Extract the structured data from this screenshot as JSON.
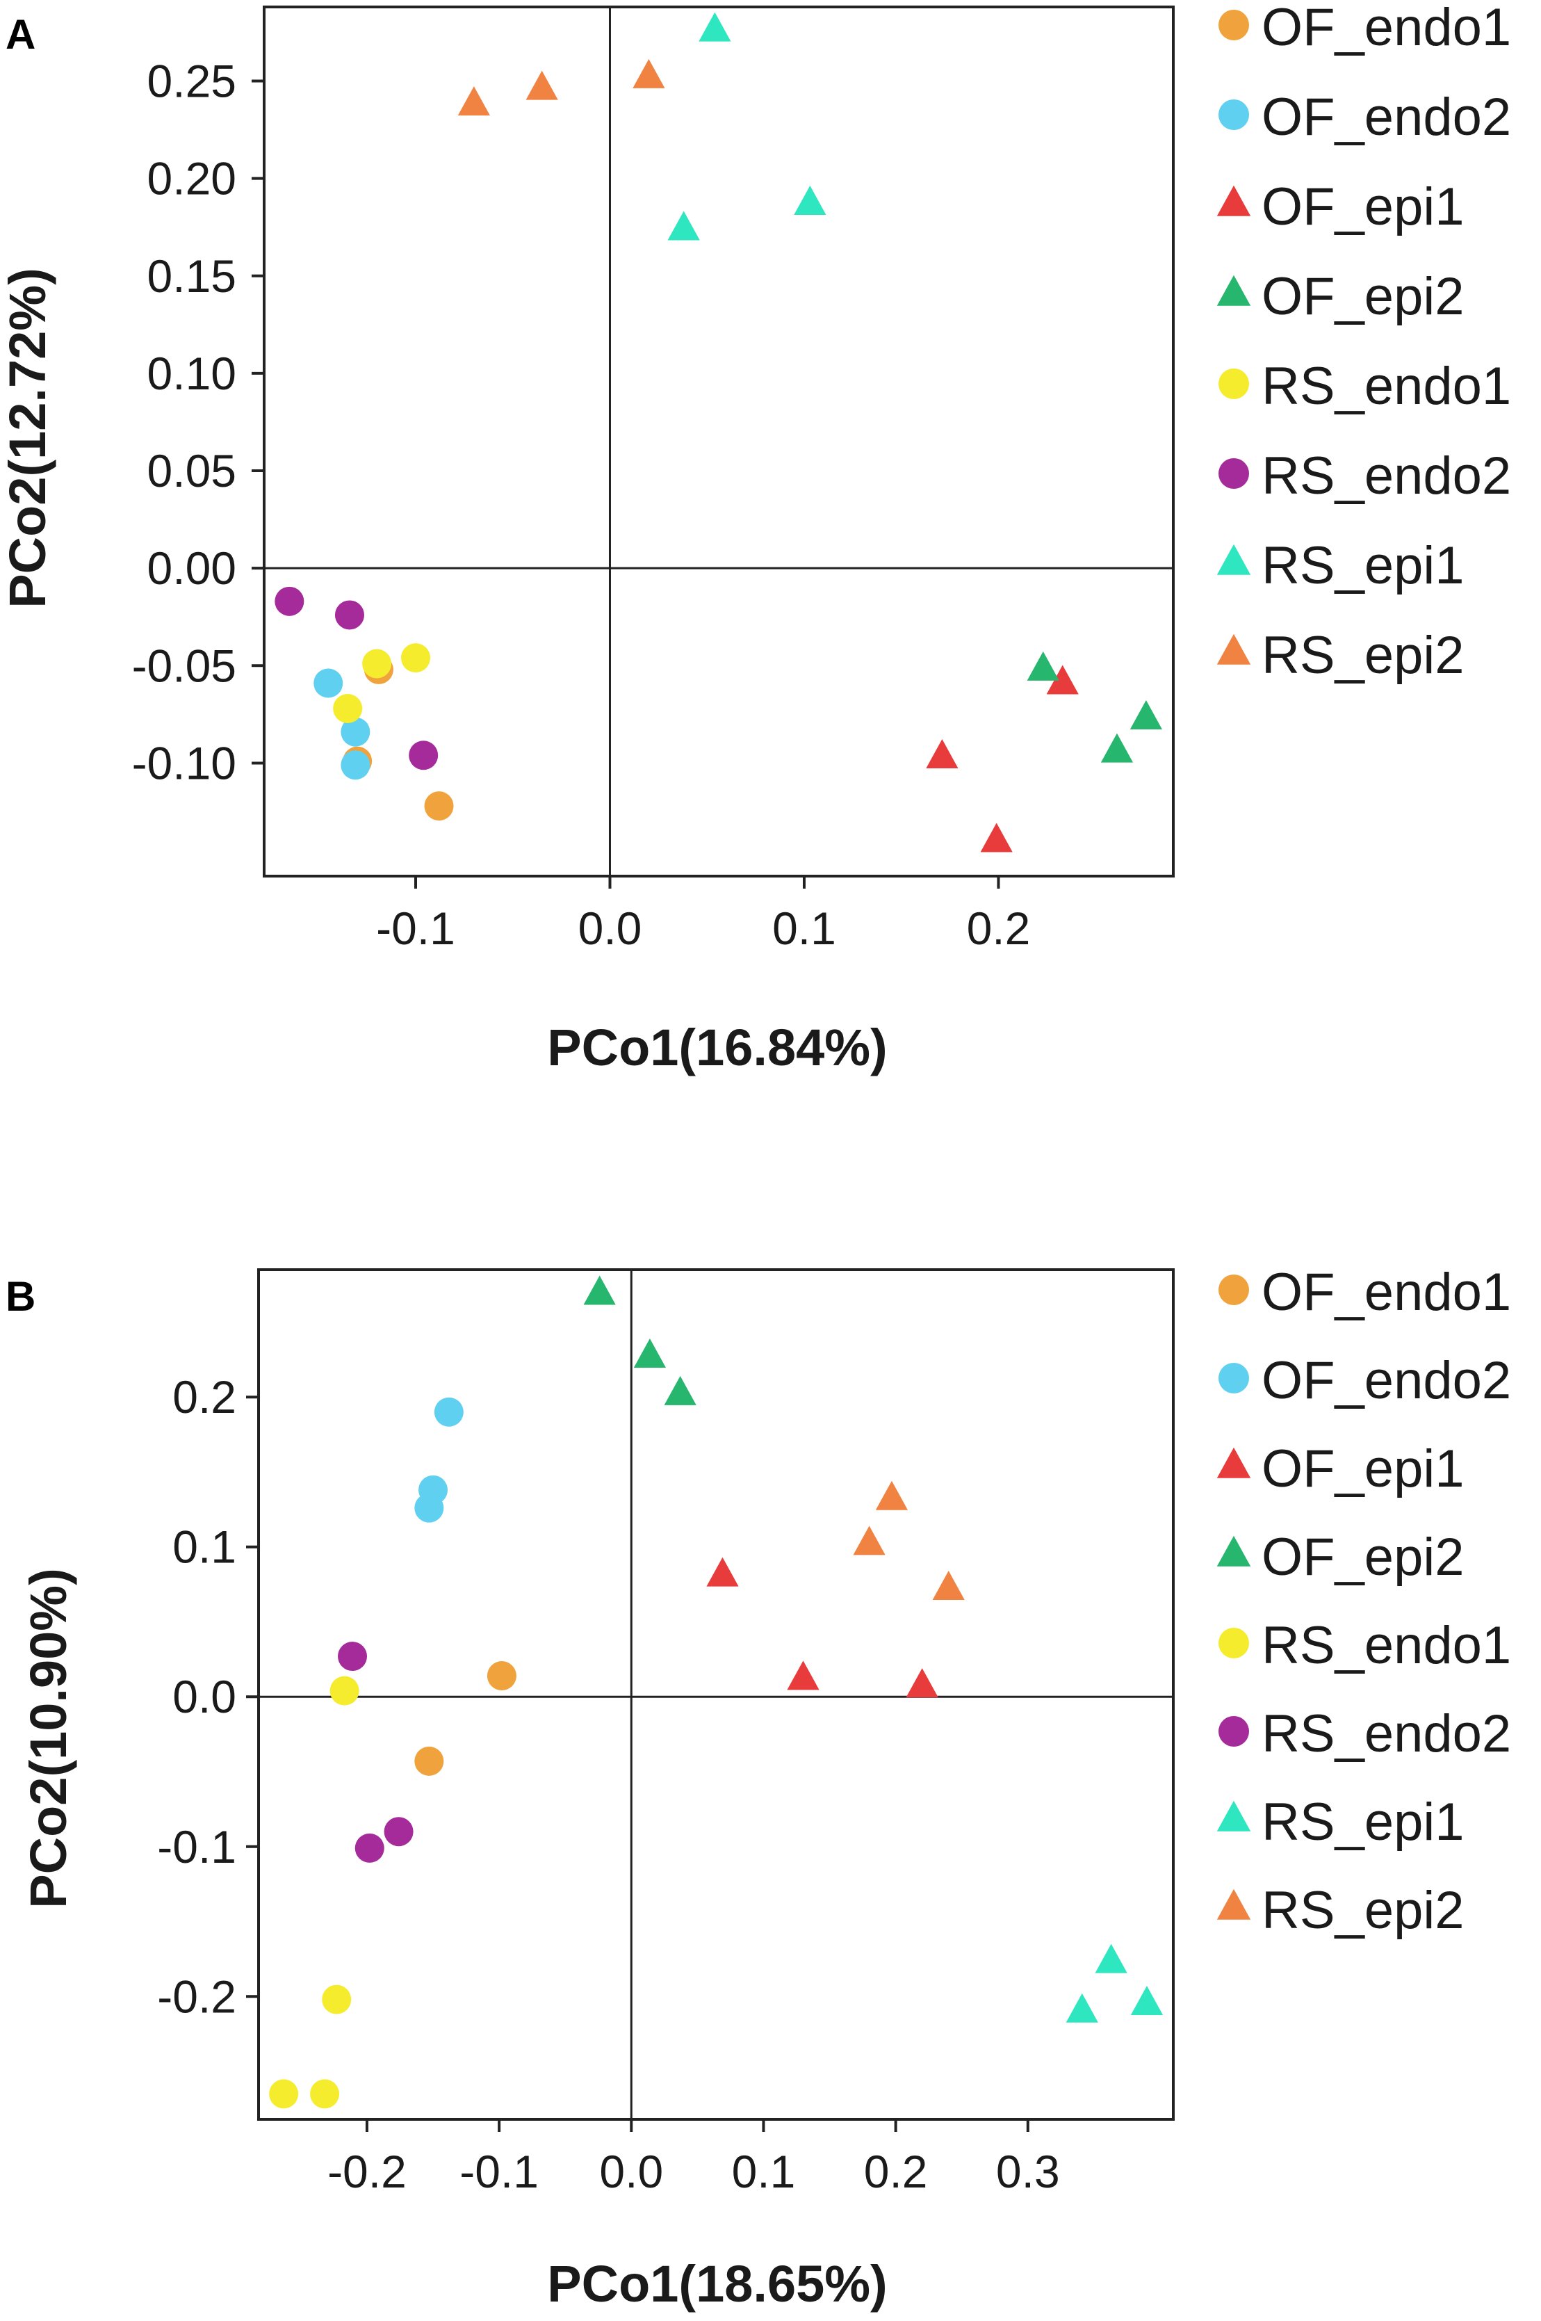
{
  "chart_data": [
    {
      "type": "scatter",
      "panel_label": "A",
      "xlabel": "PCo1(16.84%)",
      "ylabel": "PCo2(12.72%)",
      "xlim": [
        -0.178,
        0.29
      ],
      "ylim": [
        -0.158,
        0.288
      ],
      "xticks": [
        -0.1,
        0.0,
        0.1,
        0.2
      ],
      "xtick_labels": [
        "-0.1",
        "0.0",
        "0.1",
        "0.2"
      ],
      "yticks": [
        0.25,
        0.2,
        0.15,
        0.1,
        0.05,
        0.0,
        -0.05,
        -0.1
      ],
      "ytick_labels": [
        "0.25",
        "0.20",
        "0.15",
        "0.10",
        "0.05",
        "0.00",
        "-0.05",
        "-0.10"
      ],
      "legend_position": "right",
      "series": [
        {
          "name": "OF_endo1",
          "marker": "circle",
          "color": "#f0a33d",
          "points": [
            [
              -0.119,
              -0.052
            ],
            [
              -0.13,
              -0.099
            ],
            [
              -0.088,
              -0.122
            ]
          ]
        },
        {
          "name": "OF_endo2",
          "marker": "circle",
          "color": "#5fd0f0",
          "points": [
            [
              -0.145,
              -0.059
            ],
            [
              -0.131,
              -0.084
            ],
            [
              -0.131,
              -0.101
            ]
          ]
        },
        {
          "name": "OF_epi1",
          "marker": "triangle",
          "color": "#e83c3c",
          "points": [
            [
              0.233,
              -0.059
            ],
            [
              0.171,
              -0.097
            ],
            [
              0.199,
              -0.14
            ]
          ]
        },
        {
          "name": "OF_epi2",
          "marker": "triangle",
          "color": "#27b66e",
          "points": [
            [
              0.223,
              -0.052
            ],
            [
              0.276,
              -0.077
            ],
            [
              0.261,
              -0.094
            ]
          ]
        },
        {
          "name": "RS_endo1",
          "marker": "circle",
          "color": "#f5ec2e",
          "points": [
            [
              -0.12,
              -0.049
            ],
            [
              -0.1,
              -0.046
            ],
            [
              -0.135,
              -0.072
            ]
          ]
        },
        {
          "name": "RS_endo2",
          "marker": "circle",
          "color": "#a52a9a",
          "points": [
            [
              -0.165,
              -0.017
            ],
            [
              -0.134,
              -0.024
            ],
            [
              -0.096,
              -0.096
            ]
          ]
        },
        {
          "name": "RS_epi1",
          "marker": "triangle",
          "color": "#2ee6bf",
          "points": [
            [
              0.054,
              0.276
            ],
            [
              0.103,
              0.187
            ],
            [
              0.038,
              0.174
            ]
          ]
        },
        {
          "name": "RS_epi2",
          "marker": "triangle",
          "color": "#f08242",
          "points": [
            [
              -0.07,
              0.238
            ],
            [
              -0.035,
              0.246
            ],
            [
              0.02,
              0.252
            ]
          ]
        }
      ]
    },
    {
      "type": "scatter",
      "panel_label": "B",
      "xlabel": "PCo1(18.65%)",
      "ylabel": "PCo2(10.90%)",
      "xlim": [
        -0.282,
        0.41
      ],
      "ylim": [
        -0.282,
        0.285
      ],
      "xticks": [
        -0.2,
        -0.1,
        0.0,
        0.1,
        0.2,
        0.3
      ],
      "xtick_labels": [
        "-0.2",
        "-0.1",
        "0.0",
        "0.1",
        "0.2",
        "0.3"
      ],
      "yticks": [
        0.2,
        0.1,
        0.0,
        -0.1,
        -0.2
      ],
      "ytick_labels": [
        "0.2",
        "0.1",
        "0.0",
        "-0.1",
        "-0.2"
      ],
      "legend_position": "right",
      "series": [
        {
          "name": "OF_endo1",
          "marker": "circle",
          "color": "#f0a33d",
          "points": [
            [
              -0.098,
              0.014
            ],
            [
              -0.153,
              -0.043
            ]
          ]
        },
        {
          "name": "OF_endo2",
          "marker": "circle",
          "color": "#5fd0f0",
          "points": [
            [
              -0.138,
              0.19
            ],
            [
              -0.15,
              0.138
            ],
            [
              -0.153,
              0.126
            ]
          ]
        },
        {
          "name": "OF_epi1",
          "marker": "triangle",
          "color": "#e83c3c",
          "points": [
            [
              0.069,
              0.081
            ],
            [
              0.13,
              0.012
            ],
            [
              0.22,
              0.007
            ]
          ]
        },
        {
          "name": "OF_epi2",
          "marker": "triangle",
          "color": "#27b66e",
          "points": [
            [
              -0.024,
              0.269
            ],
            [
              0.014,
              0.227
            ],
            [
              0.037,
              0.202
            ]
          ]
        },
        {
          "name": "RS_endo1",
          "marker": "circle",
          "color": "#f5ec2e",
          "points": [
            [
              -0.217,
              0.004
            ],
            [
              -0.223,
              -0.202
            ],
            [
              -0.263,
              -0.265
            ],
            [
              -0.232,
              -0.265
            ]
          ]
        },
        {
          "name": "RS_endo2",
          "marker": "circle",
          "color": "#a52a9a",
          "points": [
            [
              -0.211,
              0.027
            ],
            [
              -0.198,
              -0.101
            ],
            [
              -0.176,
              -0.09
            ]
          ]
        },
        {
          "name": "RS_epi1",
          "marker": "triangle",
          "color": "#2ee6bf",
          "points": [
            [
              0.363,
              -0.177
            ],
            [
              0.341,
              -0.21
            ],
            [
              0.39,
              -0.205
            ]
          ]
        },
        {
          "name": "RS_epi2",
          "marker": "triangle",
          "color": "#f08242",
          "points": [
            [
              0.197,
              0.132
            ],
            [
              0.18,
              0.102
            ],
            [
              0.24,
              0.072
            ]
          ]
        }
      ]
    }
  ]
}
